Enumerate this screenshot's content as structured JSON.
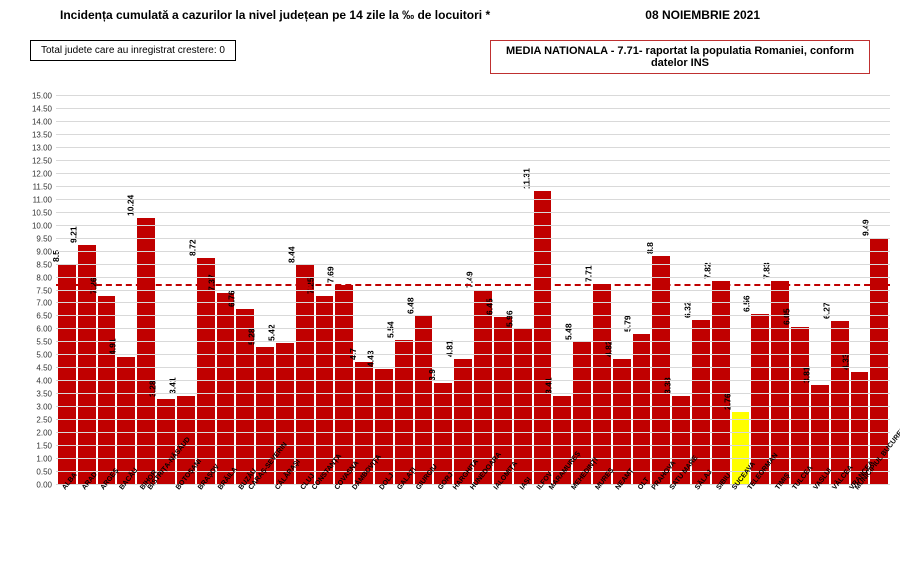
{
  "header": {
    "title": "Incidența cumulată a cazurilor la nivel județean pe 14 zile la ‰ de locuitori *",
    "date": "08 NOIEMBRIE 2021"
  },
  "box_left": "Total judete care au inregistrat crestere: 0",
  "box_right": "MEDIA NATIONALA - 7.71- raportat la populatia Romaniei, conform datelor INS",
  "chart": {
    "type": "bar",
    "ylim": [
      0,
      15
    ],
    "ytick_step": 0.5,
    "grid_color": "#d9d9d9",
    "background_color": "#ffffff",
    "default_bar_color": "#c00000",
    "highlight_bar_color": "#ffff00",
    "avg_line": {
      "value": 7.71,
      "color": "#c00000"
    },
    "label_fontsize": 8,
    "value_fontsize": 8.5,
    "bars": [
      {
        "label": "ALBA",
        "value": 8.5
      },
      {
        "label": "ARAD",
        "value": 9.21
      },
      {
        "label": "ARGEȘ",
        "value": 7.26
      },
      {
        "label": "BACĂU",
        "value": 4.91
      },
      {
        "label": "BIHOR",
        "value": 10.24
      },
      {
        "label": "BISTRIȚA-NĂSĂUD",
        "value": 3.28
      },
      {
        "label": "BOTOȘANI",
        "value": 3.41
      },
      {
        "label": "BRAȘOV",
        "value": 8.72
      },
      {
        "label": "BRĂILA",
        "value": 7.37
      },
      {
        "label": "BUZĂU",
        "value": 6.76
      },
      {
        "label": "CARAȘ-SEVERIN",
        "value": 5.28
      },
      {
        "label": "CĂLĂRAȘI",
        "value": 5.42
      },
      {
        "label": "CLUJ",
        "value": 8.44
      },
      {
        "label": "CONSTANȚA",
        "value": 7.25
      },
      {
        "label": "COVASNA",
        "value": 7.69
      },
      {
        "label": "DÂMBOVIȚA",
        "value": 4.7
      },
      {
        "label": "DOLJ",
        "value": 4.43
      },
      {
        "label": "GALAȚI",
        "value": 5.54
      },
      {
        "label": "GIURGIU",
        "value": 6.48
      },
      {
        "label": "GORJ",
        "value": 3.9
      },
      {
        "label": "HARGHITA",
        "value": 4.81
      },
      {
        "label": "HUNEDOARA",
        "value": 7.49
      },
      {
        "label": "IALOMIȚA",
        "value": 6.45
      },
      {
        "label": "IAȘI",
        "value": 5.96
      },
      {
        "label": "ILFOV",
        "value": 11.31
      },
      {
        "label": "MARAMUREȘ",
        "value": 3.41
      },
      {
        "label": "MEHEDINȚI",
        "value": 5.48
      },
      {
        "label": "MUREȘ",
        "value": 7.71
      },
      {
        "label": "NEAMȚ",
        "value": 4.82
      },
      {
        "label": "OLT",
        "value": 5.79
      },
      {
        "label": "PRAHOVA",
        "value": 8.8
      },
      {
        "label": "SATU MARE",
        "value": 3.38
      },
      {
        "label": "SĂLAJ",
        "value": 6.32
      },
      {
        "label": "SIBIU",
        "value": 7.82
      },
      {
        "label": "SUCEAVA",
        "value": 2.76,
        "color": "#ffff00"
      },
      {
        "label": "TELEORMAN",
        "value": 6.56
      },
      {
        "label": "TIMIȘ",
        "value": 7.83
      },
      {
        "label": "TULCEA",
        "value": 6.05
      },
      {
        "label": "VASLUI",
        "value": 3.81
      },
      {
        "label": "VÂLCEA",
        "value": 6.27
      },
      {
        "label": "VRANCEA",
        "value": 4.33
      },
      {
        "label": "MUNICIPIUL BUCUREȘTI",
        "value": 9.49
      }
    ]
  }
}
